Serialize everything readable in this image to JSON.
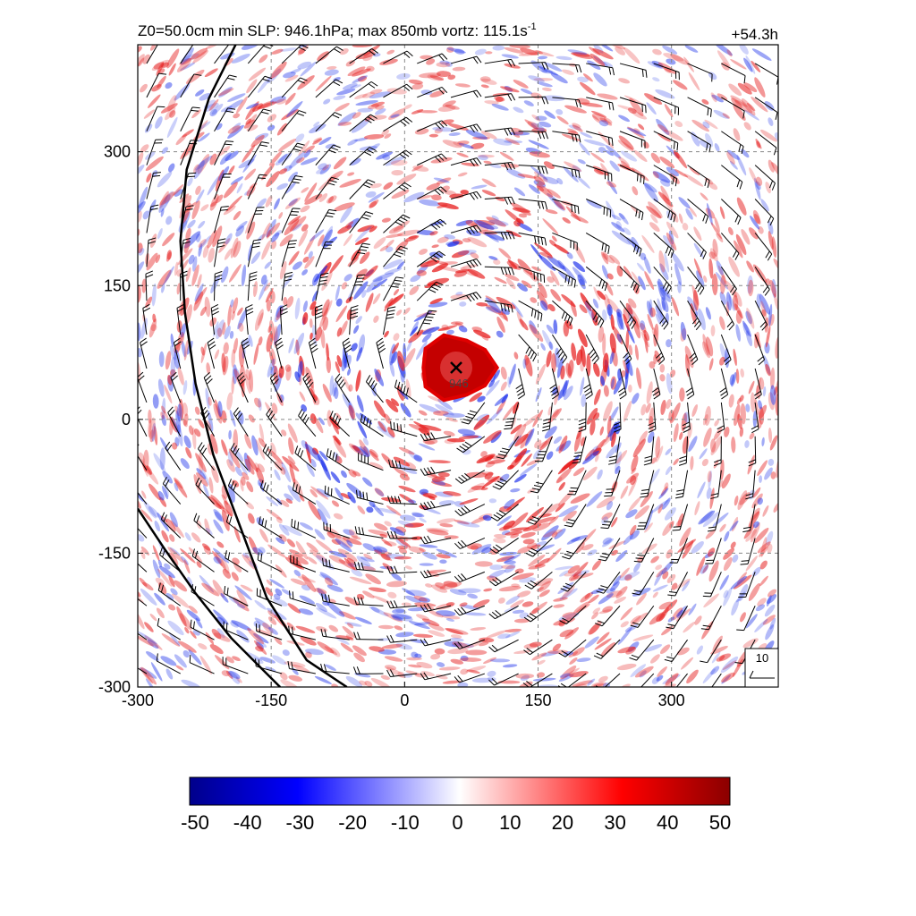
{
  "header": {
    "title_parts": [
      "Z0=50.0cm  min SLP: 946.1hPa; max 850mb vortz: 115.1s",
      "-1"
    ],
    "forecast_hour": "+54.3h"
  },
  "chart_data": {
    "type": "heatmap",
    "title": "Z0=50.0cm  min SLP: 946.1hPa; max 850mb vortz: 115.1s-1",
    "xlim": [
      -300,
      420
    ],
    "ylim": [
      -300,
      420
    ],
    "xticks": [
      -300,
      -150,
      0,
      150,
      300
    ],
    "yticks": [
      -300,
      -150,
      0,
      150,
      300
    ],
    "xtick_labels": [
      "-300",
      "-150",
      "0",
      "150",
      "300"
    ],
    "ytick_labels": [
      "-300",
      "-150",
      "0",
      "150",
      "300"
    ],
    "grid": true,
    "storm_center": {
      "x": 58,
      "y": 58,
      "marker": "x"
    },
    "min_pressure_label": "946",
    "eyewall_core_radius": 45,
    "wind_barb_reference": {
      "label": "10",
      "location": "bottom-right"
    },
    "colorbar": {
      "range": [
        -50,
        50
      ],
      "tick_labels": [
        "-50",
        "-40",
        "-30",
        "-20",
        "-10",
        "0",
        "10",
        "20",
        "30",
        "40",
        "50"
      ],
      "colors": [
        "#00008b",
        "#0000ff",
        "#ffffff",
        "#ff0000",
        "#8b0000"
      ]
    },
    "coastlines": [
      {
        "name": "",
        "points": [
          [
            -190,
            420
          ],
          [
            -220,
            360
          ],
          [
            -245,
            280
          ],
          [
            -252,
            200
          ],
          [
            -247,
            120
          ],
          [
            -235,
            40
          ],
          [
            -215,
            -40
          ],
          [
            -185,
            -120
          ],
          [
            -155,
            -200
          ],
          [
            -110,
            -270
          ],
          [
            -65,
            -300
          ]
        ]
      },
      {
        "name": "",
        "points": [
          [
            -300,
            -100
          ],
          [
            -270,
            -145
          ],
          [
            -235,
            -195
          ],
          [
            -195,
            -245
          ],
          [
            -160,
            -280
          ],
          [
            -140,
            -300
          ]
        ]
      }
    ]
  }
}
